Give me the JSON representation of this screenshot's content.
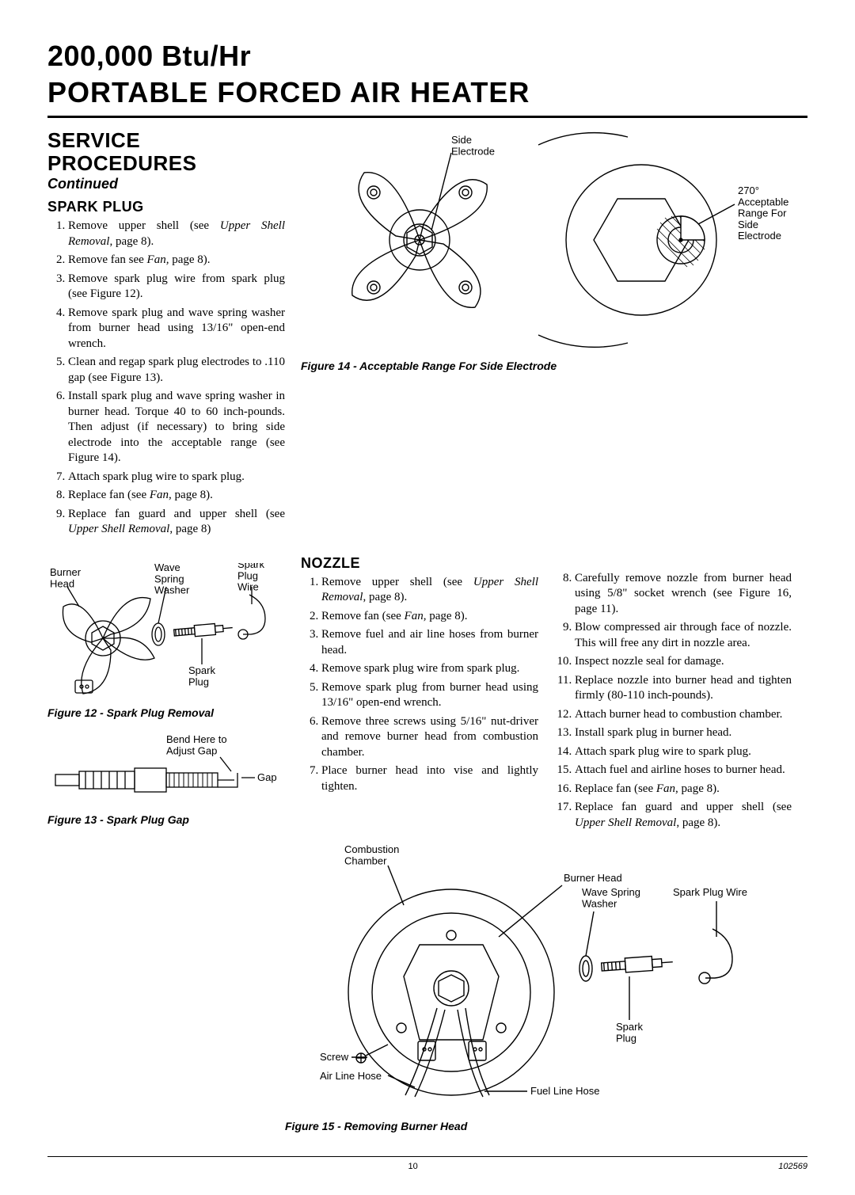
{
  "title": {
    "line1": "200,000 Btu/Hr",
    "line2": "PORTABLE FORCED AIR HEATER"
  },
  "section": {
    "head_l1": "SERVICE",
    "head_l2": "PROCEDURES",
    "continued": "Continued"
  },
  "spark_plug": {
    "heading": "SPARK PLUG",
    "steps": [
      "Remove upper shell (see <i>Upper Shell Removal</i>, page 8).",
      "Remove fan see <i>Fan,</i> page 8).",
      "Remove spark plug wire from spark plug (see Figure 12).",
      "Remove spark plug and wave spring washer from burner head using 13/16\" open-end wrench.",
      "Clean and regap spark plug electrodes to .110 gap (see Figure 13).",
      "Install spark plug and wave spring washer in burner head. Torque 40 to 60 inch-pounds. Then adjust (if necessary) to bring side electrode into the acceptable range (see Figure 14).",
      "Attach spark plug wire to spark plug.",
      "Replace fan (see <i>Fan</i>, page 8).",
      "Replace fan guard and upper shell (see <i>Upper Shell Removal</i>, page 8)"
    ]
  },
  "nozzle": {
    "heading": "NOZZLE",
    "steps_left": [
      "Remove upper shell (see <i>Upper Shell Removal</i>, page 8).",
      "Remove fan (see <i>Fan</i>, page 8).",
      "Remove fuel and air line hoses from burner head.",
      "Remove spark plug wire from spark plug.",
      "Remove spark plug from burner head using 13/16\" open-end wrench.",
      "Remove three screws using 5/16\" nut-driver and remove burner head from combustion chamber.",
      "Place burner head into vise and lightly tighten."
    ],
    "steps_right": [
      "Carefully remove nozzle from burner head using 5/8\" socket wrench (see Figure 16, page 11).",
      "Blow compressed air through face of nozzle. This will free any dirt in nozzle area.",
      "Inspect nozzle seal for damage.",
      "Replace nozzle into burner head and tighten firmly (80-110 inch-pounds).",
      "Attach burner head to combustion chamber.",
      "Install spark plug in burner head.",
      "Attach spark plug wire to spark plug.",
      "Attach fuel and airline hoses to burner head.",
      "Replace fan (see <i>Fan</i>, page 8).",
      "Replace fan guard and upper shell (see <i>Upper Shell Removal</i>, page 8)."
    ]
  },
  "figures": {
    "fig12": {
      "caption": "Figure 12 - Spark Plug Removal",
      "labels": {
        "burner_head": "Burner\nHead",
        "wave_spring_washer": "Wave\nSpring\nWasher",
        "spark_plug": "Spark\nPlug",
        "spark_plug_wire": "Spark\nPlug\nWire"
      }
    },
    "fig13": {
      "caption": "Figure 13 - Spark Plug Gap",
      "labels": {
        "bend": "Bend Here to\nAdjust Gap",
        "gap": "Gap"
      }
    },
    "fig14": {
      "caption": "Figure 14 - Acceptable Range For Side Electrode",
      "labels": {
        "side_electrode": "Side\nElectrode",
        "range": "270°\nAcceptable\nRange For\nSide\nElectrode"
      }
    },
    "fig15": {
      "caption": "Figure 15 - Removing Burner Head",
      "labels": {
        "combustion_chamber": "Combustion\nChamber",
        "burner_head": "Burner Head",
        "wave_spring_washer": "Wave Spring\nWasher",
        "spark_plug_wire": "Spark Plug Wire",
        "spark_plug": "Spark\nPlug",
        "screw": "Screw",
        "air_line_hose": "Air Line Hose",
        "fuel_line_hose": "Fuel Line Hose"
      }
    }
  },
  "footer": {
    "page": "10",
    "doc": "102569"
  },
  "style": {
    "stroke": "#000000",
    "stroke_w": 1.4,
    "hatch_w": 0.8,
    "font_label": "13px Arial, Helvetica, sans-serif"
  }
}
